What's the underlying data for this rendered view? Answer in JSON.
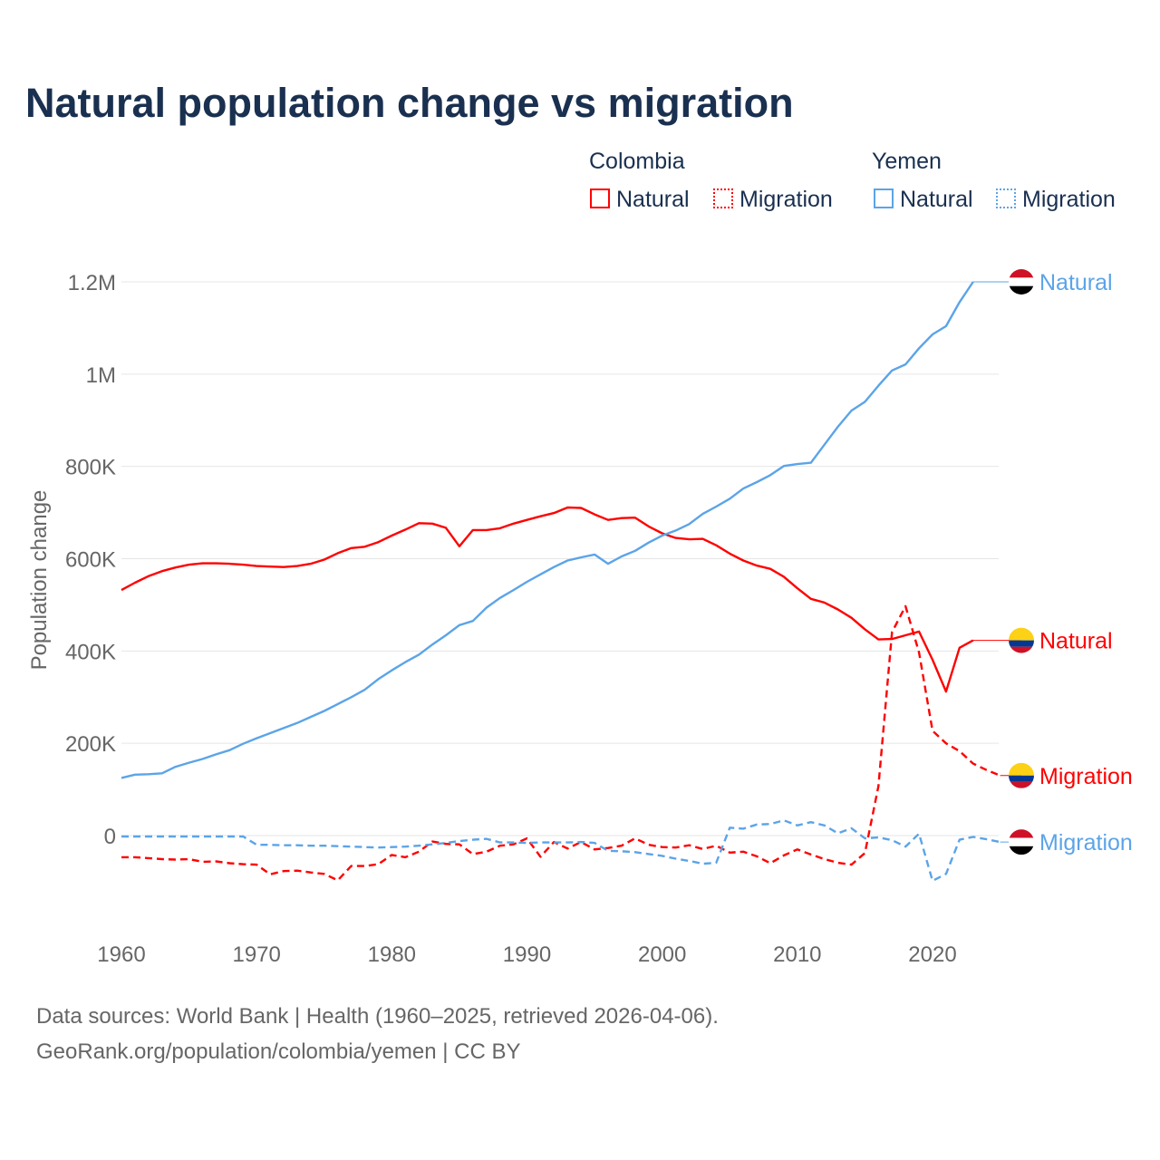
{
  "title": "Natural population change vs migration",
  "legend": {
    "groups": [
      {
        "country": "Colombia",
        "items": [
          "Natural",
          "Migration"
        ],
        "color": "#ff0000"
      },
      {
        "country": "Yemen",
        "items": [
          "Natural",
          "Migration"
        ],
        "color": "#5ba4e8"
      }
    ]
  },
  "footer": {
    "line1": "Data sources: World Bank | Health (1960–2025, retrieved 2026-04-06).",
    "line2": "GeoRank.org/population/colombia/yemen | CC BY"
  },
  "chart_data": {
    "type": "line",
    "title": "Natural population change vs migration",
    "xlabel": "",
    "ylabel": "Population change",
    "xlim": [
      1960,
      2025
    ],
    "ylim": [
      -200000,
      1200000
    ],
    "x_ticks": [
      1960,
      1970,
      1980,
      1990,
      2000,
      2010,
      2020
    ],
    "x_tick_labels": [
      "1960",
      "1970",
      "1980",
      "1990",
      "2000",
      "2010",
      "2020"
    ],
    "y_ticks": [
      0,
      200000,
      400000,
      600000,
      800000,
      1000000,
      1200000
    ],
    "y_tick_labels": [
      "0",
      "200K",
      "400K",
      "600K",
      "800K",
      "1M",
      "1.2M"
    ],
    "grid": true,
    "legend_position": "top-right",
    "series": [
      {
        "name": "Colombia Natural",
        "end_label": "Natural",
        "country": "Colombia",
        "color": "#ff0000",
        "dashed": false,
        "start_year": 1960,
        "values_thousands": [
          532,
          548,
          562,
          573,
          581,
          587,
          590,
          590,
          589,
          587,
          584,
          583,
          582,
          584,
          589,
          598,
          612,
          623,
          626,
          636,
          650,
          663,
          677,
          676,
          667,
          627,
          662,
          662,
          666,
          676,
          684,
          692,
          699,
          711,
          710,
          696,
          684,
          688,
          689,
          670,
          655,
          645,
          642,
          643,
          629,
          611,
          596,
          585,
          578,
          561,
          536,
          513,
          505,
          490,
          472,
          447,
          425,
          426,
          434,
          442,
          381,
          312,
          407,
          423
        ]
      },
      {
        "name": "Colombia Migration",
        "end_label": "Migration",
        "country": "Colombia",
        "color": "#ff0000",
        "dashed": true,
        "start_year": 1960,
        "values_thousands": [
          -47,
          -47,
          -49,
          -51,
          -52,
          -51,
          -57,
          -56,
          -60,
          -62,
          -63,
          -84,
          -77,
          -76,
          -80,
          -83,
          -97,
          -66,
          -66,
          -62,
          -42,
          -47,
          -35,
          -13,
          -18,
          -19,
          -40,
          -35,
          -22,
          -19,
          -6,
          -46,
          -14,
          -28,
          -14,
          -30,
          -27,
          -22,
          -6,
          -20,
          -25,
          -26,
          -21,
          -29,
          -22,
          -37,
          -35,
          -45,
          -60,
          -43,
          -30,
          -41,
          -51,
          -59,
          -63,
          -38,
          107,
          441,
          497,
          397,
          227,
          200,
          183,
          156,
          142,
          130
        ]
      },
      {
        "name": "Yemen Natural",
        "end_label": "Natural",
        "country": "Yemen",
        "color": "#5ba4e8",
        "dashed": false,
        "start_year": 1960,
        "values_thousands": [
          125,
          132,
          133,
          135,
          149,
          158,
          166,
          176,
          185,
          199,
          211,
          222,
          233,
          244,
          257,
          270,
          285,
          300,
          316,
          339,
          358,
          376,
          392,
          414,
          434,
          456,
          465,
          494,
          515,
          532,
          550,
          566,
          582,
          596,
          603,
          609,
          589,
          605,
          617,
          635,
          650,
          661,
          675,
          697,
          713,
          730,
          752,
          766,
          781,
          801,
          805,
          808,
          847,
          886,
          921,
          940,
          975,
          1008,
          1021,
          1056,
          1086,
          1104,
          1156,
          1200
        ]
      },
      {
        "name": "Yemen Migration",
        "end_label": "Migration",
        "country": "Yemen",
        "color": "#5ba4e8",
        "dashed": true,
        "start_year": 1960,
        "values_thousands": [
          -2,
          -2,
          -2,
          -2,
          -2,
          -2,
          -2,
          -2,
          -2,
          -2,
          -20,
          -20,
          -21,
          -21,
          -22,
          -22,
          -23,
          -24,
          -25,
          -26,
          -25,
          -24,
          -22,
          -19,
          -16,
          -12,
          -9,
          -7,
          -15,
          -15,
          -16,
          -15,
          -15,
          -15,
          -14,
          -16,
          -33,
          -34,
          -36,
          -40,
          -44,
          -50,
          -55,
          -61,
          -59,
          17,
          15,
          24,
          25,
          33,
          22,
          29,
          22,
          5,
          16,
          -6,
          -4,
          -10,
          -24,
          4,
          -98,
          -83,
          -9,
          -3,
          -8,
          -14
        ]
      }
    ]
  }
}
